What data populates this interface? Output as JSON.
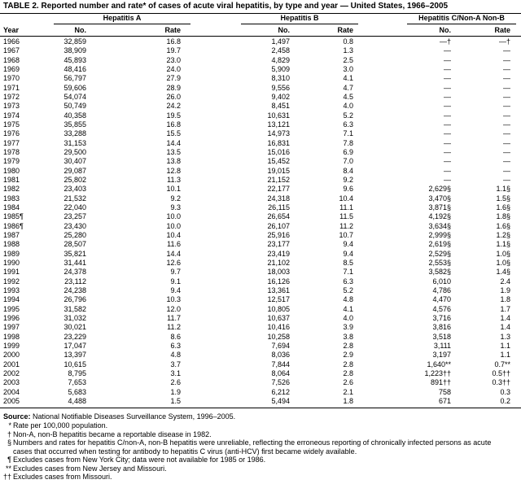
{
  "title": "TABLE 2. Reported number and rate* of cases of acute viral hepatitis, by type and year — United States, 1966–2005",
  "column_groups": [
    "Hepatitis A",
    "Hepatitis B",
    "Hepatitis C/Non-A Non-B"
  ],
  "columns": [
    "Year",
    "No.",
    "Rate",
    "No.",
    "Rate",
    "No.",
    "Rate"
  ],
  "rows": [
    [
      "1966",
      "32,859",
      "16.8",
      "1,497",
      "0.8",
      "—†",
      "—†"
    ],
    [
      "1967",
      "38,909",
      "19.7",
      "2,458",
      "1.3",
      "—",
      "—"
    ],
    [
      "1968",
      "45,893",
      "23.0",
      "4,829",
      "2.5",
      "—",
      "—"
    ],
    [
      "1969",
      "48,416",
      "24.0",
      "5,909",
      "3.0",
      "—",
      "—"
    ],
    [
      "1970",
      "56,797",
      "27.9",
      "8,310",
      "4.1",
      "—",
      "—"
    ],
    [
      "1971",
      "59,606",
      "28.9",
      "9,556",
      "4.7",
      "—",
      "—"
    ],
    [
      "1972",
      "54,074",
      "26.0",
      "9,402",
      "4.5",
      "—",
      "—"
    ],
    [
      "1973",
      "50,749",
      "24.2",
      "8,451",
      "4.0",
      "—",
      "—"
    ],
    [
      "1974",
      "40,358",
      "19.5",
      "10,631",
      "5.2",
      "—",
      "—"
    ],
    [
      "1975",
      "35,855",
      "16.8",
      "13,121",
      "6.3",
      "—",
      "—"
    ],
    [
      "1976",
      "33,288",
      "15.5",
      "14,973",
      "7.1",
      "—",
      "—"
    ],
    [
      "1977",
      "31,153",
      "14.4",
      "16,831",
      "7.8",
      "—",
      "—"
    ],
    [
      "1978",
      "29,500",
      "13.5",
      "15,016",
      "6.9",
      "—",
      "—"
    ],
    [
      "1979",
      "30,407",
      "13.8",
      "15,452",
      "7.0",
      "—",
      "—"
    ],
    [
      "1980",
      "29,087",
      "12.8",
      "19,015",
      "8.4",
      "—",
      "—"
    ],
    [
      "1981",
      "25,802",
      "11.3",
      "21,152",
      "9.2",
      "—",
      "—"
    ],
    [
      "1982",
      "23,403",
      "10.1",
      "22,177",
      "9.6",
      "2,629§",
      "1.1§"
    ],
    [
      "1983",
      "21,532",
      "9.2",
      "24,318",
      "10.4",
      "3,470§",
      "1.5§"
    ],
    [
      "1984",
      "22,040",
      "9.3",
      "26,115",
      "11.1",
      "3,871§",
      "1.6§"
    ],
    [
      "1985¶",
      "23,257",
      "10.0",
      "26,654",
      "11.5",
      "4,192§",
      "1.8§"
    ],
    [
      "1986¶",
      "23,430",
      "10.0",
      "26,107",
      "11.2",
      "3,634§",
      "1.6§"
    ],
    [
      "1987",
      "25,280",
      "10.4",
      "25,916",
      "10.7",
      "2,999§",
      "1.2§"
    ],
    [
      "1988",
      "28,507",
      "11.6",
      "23,177",
      "9.4",
      "2,619§",
      "1.1§"
    ],
    [
      "1989",
      "35,821",
      "14.4",
      "23,419",
      "9.4",
      "2,529§",
      "1.0§"
    ],
    [
      "1990",
      "31,441",
      "12.6",
      "21,102",
      "8.5",
      "2,553§",
      "1.0§"
    ],
    [
      "1991",
      "24,378",
      "9.7",
      "18,003",
      "7.1",
      "3,582§",
      "1.4§"
    ],
    [
      "1992",
      "23,112",
      "9.1",
      "16,126",
      "6.3",
      "6,010",
      "2.4"
    ],
    [
      "1993",
      "24,238",
      "9.4",
      "13,361",
      "5.2",
      "4,786",
      "1.9"
    ],
    [
      "1994",
      "26,796",
      "10.3",
      "12,517",
      "4.8",
      "4,470",
      "1.8"
    ],
    [
      "1995",
      "31,582",
      "12.0",
      "10,805",
      "4.1",
      "4,576",
      "1.7"
    ],
    [
      "1996",
      "31,032",
      "11.7",
      "10,637",
      "4.0",
      "3,716",
      "1.4"
    ],
    [
      "1997",
      "30,021",
      "11.2",
      "10,416",
      "3.9",
      "3,816",
      "1.4"
    ],
    [
      "1998",
      "23,229",
      "8.6",
      "10,258",
      "3.8",
      "3,518",
      "1.3"
    ],
    [
      "1999",
      "17,047",
      "6.3",
      "7,694",
      "2.8",
      "3,111",
      "1.1"
    ],
    [
      "2000",
      "13,397",
      "4.8",
      "8,036",
      "2.9",
      "3,197",
      "1.1"
    ],
    [
      "2001",
      "10,615",
      "3.7",
      "7,844",
      "2.8",
      "1,640**",
      "0.7**"
    ],
    [
      "2002",
      "8,795",
      "3.1",
      "8,064",
      "2.8",
      "1,223††",
      "0.5††"
    ],
    [
      "2003",
      "7,653",
      "2.6",
      "7,526",
      "2.6",
      "891††",
      "0.3††"
    ],
    [
      "2004",
      "5,683",
      "1.9",
      "6,212",
      "2.1",
      "758",
      "0.3"
    ],
    [
      "2005",
      "4,488",
      "1.5",
      "5,494",
      "1.8",
      "671",
      "0.2"
    ]
  ],
  "source": {
    "label": "Source:",
    "text": "National Notifiable Diseases Surveillance System, 1996–2005."
  },
  "footnotes": [
    {
      "marker": "*",
      "text": "Rate per 100,000 population."
    },
    {
      "marker": "†",
      "text": "Non-A, non-B hepatitis became a reportable disease in 1982."
    },
    {
      "marker": "§",
      "text": "Numbers and rates for hepatitis C/non-A, non-B hepatitis were unreliable, reflecting the erroneous reporting of chronically infected persons as acute cases that occurred when testing for antibody to hepatitis C virus (anti-HCV) first became widely available."
    },
    {
      "marker": "¶",
      "text": "Excludes cases from New York City; data were not available for 1985 or 1986."
    },
    {
      "marker": "**",
      "text": "Excludes cases from New Jersey and Missouri."
    },
    {
      "marker": "††",
      "text": "Excludes cases from Missouri."
    }
  ]
}
